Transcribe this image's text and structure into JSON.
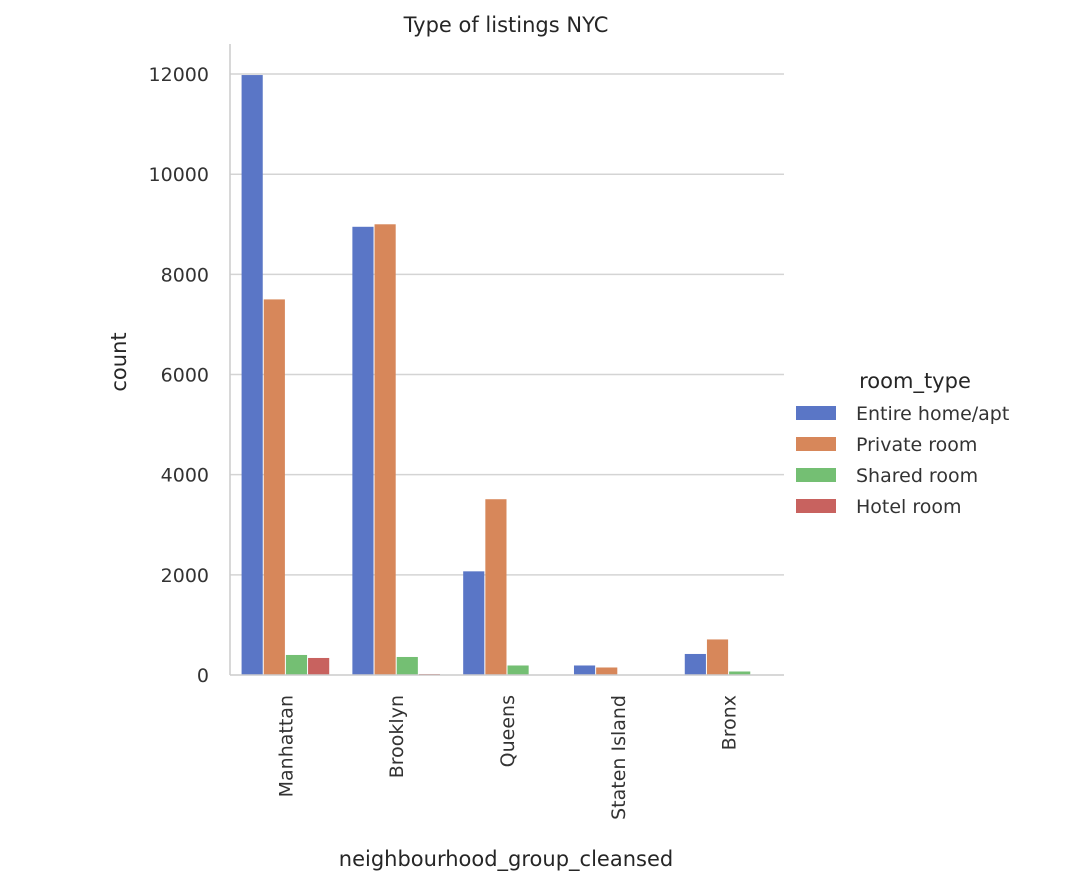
{
  "chart_data": {
    "type": "bar",
    "title": "Type of listings NYC",
    "xlabel": "neighbourhood_group_cleansed",
    "ylabel": "count",
    "categories": [
      "Manhattan",
      "Brooklyn",
      "Queens",
      "Staten Island",
      "Bronx"
    ],
    "ylim": [
      0,
      12600
    ],
    "yticks": [
      0,
      2000,
      4000,
      6000,
      8000,
      10000,
      12000
    ],
    "grid": true,
    "legend_title": "room_type",
    "legend_position": "right",
    "series": [
      {
        "name": "Entire home/apt",
        "color": "#5a76c6",
        "values": [
          11980,
          8950,
          2070,
          190,
          420
        ]
      },
      {
        "name": "Private room",
        "color": "#d7875a",
        "values": [
          7500,
          9000,
          3510,
          150,
          710
        ]
      },
      {
        "name": "Shared room",
        "color": "#74bf73",
        "values": [
          400,
          360,
          190,
          10,
          70
        ]
      },
      {
        "name": "Hotel room",
        "color": "#c8625f",
        "values": [
          340,
          20,
          10,
          0,
          0
        ]
      }
    ]
  }
}
